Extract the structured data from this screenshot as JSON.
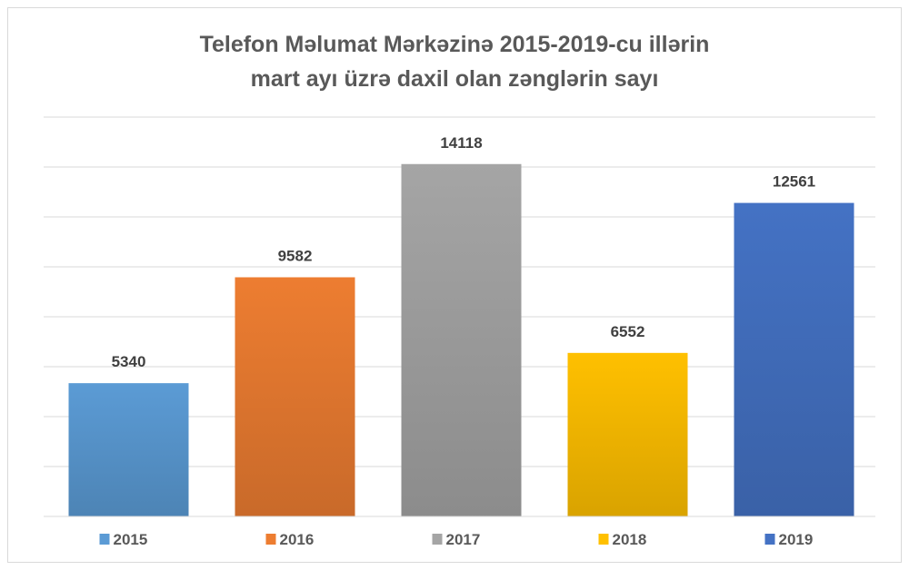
{
  "chart_data": {
    "type": "bar",
    "title_line1": "Telefon Məlumat Mərkəzinə 2015-2019-cu illərin",
    "title_line2": "mart ayı üzrə daxil olan zənglərin sayı",
    "categories": [
      "2015",
      "2016",
      "2017",
      "2018",
      "2019"
    ],
    "values": [
      5340,
      9582,
      14118,
      6552,
      12561
    ],
    "data_labels": [
      "5340",
      "9582",
      "14118",
      "6552",
      "12561"
    ],
    "colors": [
      "#5b9bd5",
      "#ed7d31",
      "#a5a5a5",
      "#ffc000",
      "#4472c4"
    ],
    "ylim": [
      0,
      16000
    ],
    "grid": true,
    "y_axis_labels_visible": false,
    "legend": {
      "position": "bottom",
      "entries": [
        "2015",
        "2016",
        "2017",
        "2018",
        "2019"
      ]
    }
  }
}
